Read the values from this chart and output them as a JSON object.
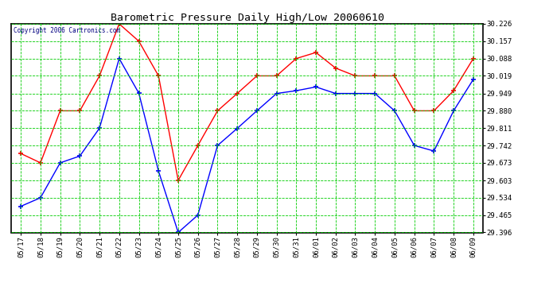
{
  "title": "Barometric Pressure Daily High/Low 20060610",
  "copyright": "Copyright 2006 Cartronics.com",
  "x_labels": [
    "05/17",
    "05/18",
    "05/19",
    "05/20",
    "05/21",
    "05/22",
    "05/23",
    "05/24",
    "05/25",
    "05/26",
    "05/27",
    "05/28",
    "05/29",
    "05/30",
    "05/31",
    "06/01",
    "06/02",
    "06/03",
    "06/04",
    "06/05",
    "06/06",
    "06/07",
    "06/08",
    "06/09"
  ],
  "high_values": [
    29.71,
    29.673,
    29.88,
    29.88,
    30.019,
    30.226,
    30.157,
    30.019,
    29.603,
    29.742,
    29.88,
    29.949,
    30.019,
    30.019,
    30.088,
    30.112,
    30.05,
    30.019,
    30.019,
    30.019,
    29.88,
    29.88,
    29.96,
    30.088
  ],
  "low_values": [
    29.5,
    29.534,
    29.673,
    29.7,
    29.811,
    30.088,
    29.95,
    29.64,
    29.396,
    29.465,
    29.742,
    29.81,
    29.88,
    29.949,
    29.96,
    29.975,
    29.949,
    29.949,
    29.949,
    29.88,
    29.742,
    29.72,
    29.88,
    30.005
  ],
  "high_color": "#ff0000",
  "low_color": "#0000ff",
  "bg_color": "#ffffff",
  "grid_color": "#00cc00",
  "y_ticks": [
    29.396,
    29.465,
    29.534,
    29.603,
    29.673,
    29.742,
    29.811,
    29.88,
    29.949,
    30.019,
    30.088,
    30.157,
    30.226
  ],
  "y_min": 29.396,
  "y_max": 30.226,
  "marker": "+"
}
